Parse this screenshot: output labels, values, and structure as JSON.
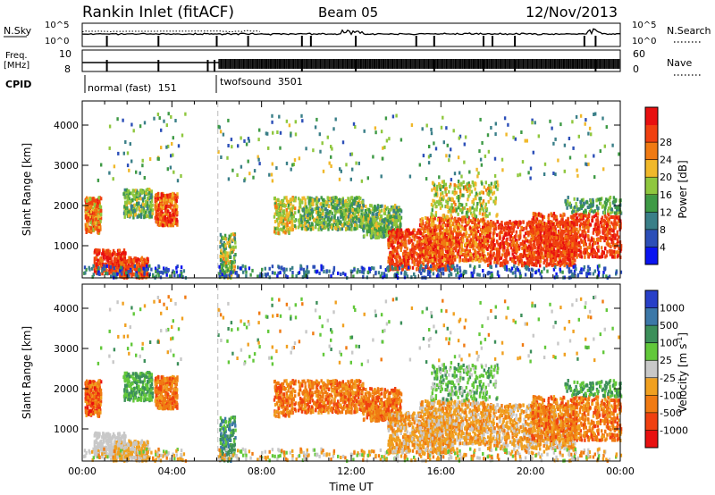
{
  "header": {
    "station": "Rankin Inlet (fitACF)",
    "beam": "Beam 05",
    "date": "12/Nov/2013"
  },
  "colors": {
    "power_scale": [
      "#0a14f0",
      "#2c4fb8",
      "#3a7f88",
      "#3e9a45",
      "#8fc73e",
      "#f0b82a",
      "#f07a12",
      "#f04010",
      "#e81010"
    ],
    "velocity_scale": [
      "#2840c8",
      "#3c78a8",
      "#3c8f5a",
      "#62c83a",
      "#c8c8c8",
      "#f0a020",
      "#f07a12",
      "#f04010",
      "#e81010"
    ]
  },
  "chart_data": [
    {
      "type": "line",
      "panel": "nsky-nsearch",
      "left_label": "N.Sky",
      "right_label": "N.Search",
      "left_ticks": [
        "10^5",
        "10^0"
      ],
      "right_ticks": [
        "10^5",
        "10^0"
      ],
      "series": [
        {
          "legend": "solid"
        },
        {
          "legend": "dotted"
        }
      ]
    },
    {
      "type": "line",
      "panel": "freq-nave",
      "left_label": "Freq.",
      "left_unit": "[MHz]",
      "right_label": "Nave",
      "left_ticks": [
        "10",
        "8"
      ],
      "right_ticks": [
        "60",
        "0"
      ],
      "series": [
        {
          "legend": "solid"
        },
        {
          "legend": "dotted"
        }
      ]
    },
    {
      "type": "table",
      "panel": "cpid",
      "label": "CPID",
      "programs": [
        {
          "name": "normal (fast)",
          "id": "151",
          "start_hour": 0,
          "end_hour": 6.1
        },
        {
          "name": "twofsound",
          "id": "3501",
          "start_hour": 6.1,
          "end_hour": 24
        }
      ]
    },
    {
      "type": "heatmap",
      "panel": "power",
      "ylabel": "Slant Range [km]",
      "xlabel": "",
      "yticks": [
        1000,
        2000,
        3000,
        4000
      ],
      "ylim": [
        200,
        4600
      ],
      "xlim_hours": [
        0,
        24
      ],
      "colorbar": {
        "label": "Power [dB]",
        "ticks": [
          "4",
          "8",
          "12",
          "16",
          "20",
          "24",
          "28"
        ]
      }
    },
    {
      "type": "heatmap",
      "panel": "velocity",
      "ylabel": "Slant Range [km]",
      "xlabel": "Time UT",
      "yticks": [
        1000,
        2000,
        3000,
        4000
      ],
      "ylim": [
        200,
        4600
      ],
      "xlim_hours": [
        0,
        24
      ],
      "xticks": [
        "00:00",
        "04:00",
        "08:00",
        "12:00",
        "16:00",
        "20:00",
        "00:00"
      ],
      "colorbar": {
        "label": "Velocity [m s",
        "label_sup": "-1",
        "label_end": "]",
        "ticks": [
          "1000",
          "500",
          "100",
          "25",
          "-25",
          "-100",
          "-500",
          "-1000"
        ]
      }
    }
  ]
}
